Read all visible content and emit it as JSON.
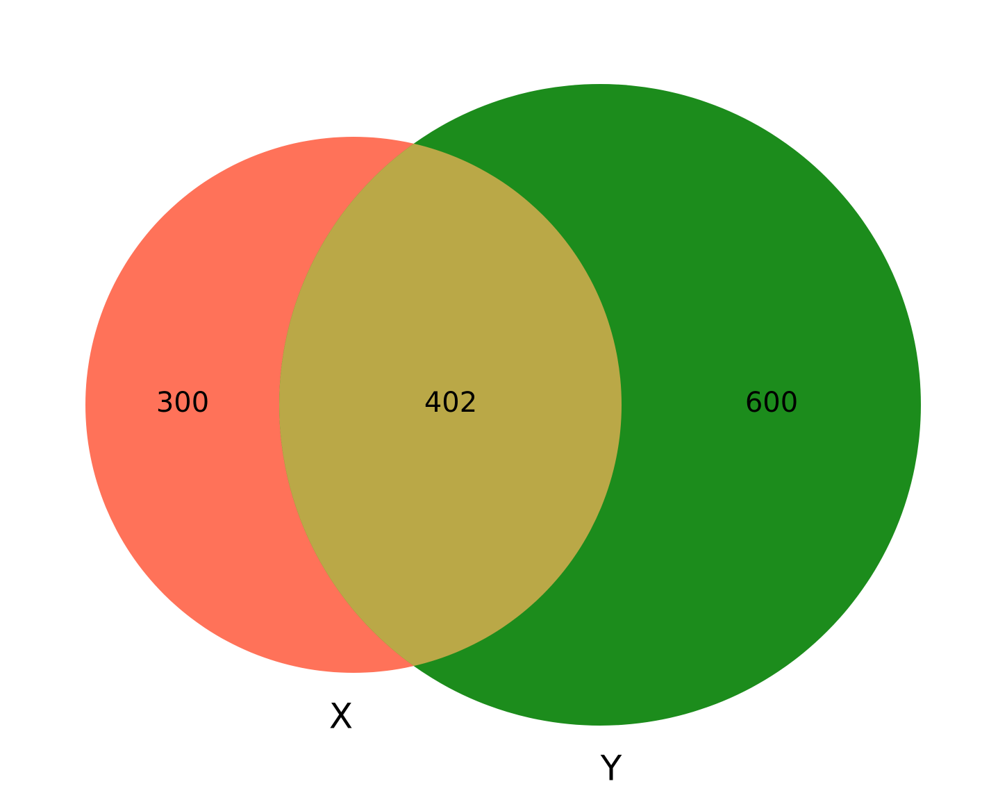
{
  "diagram": {
    "type": "venn2",
    "sets": [
      {
        "id": "x",
        "label": "X",
        "only_count": "300",
        "color": "#ff7259"
      },
      {
        "id": "y",
        "label": "Y",
        "only_count": "600",
        "color": "#1c8c1c"
      }
    ],
    "intersection": {
      "count": "402",
      "color": "#baa847"
    }
  }
}
